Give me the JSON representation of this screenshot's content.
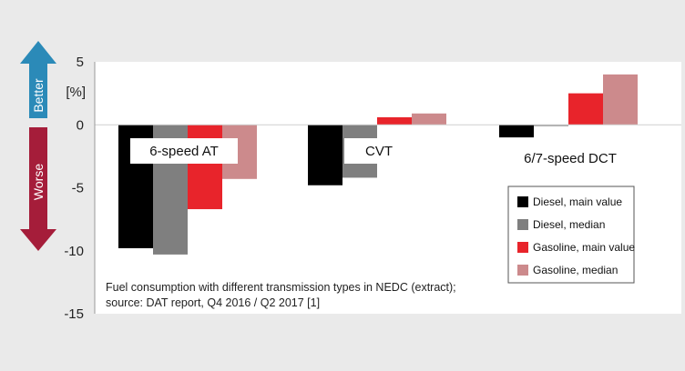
{
  "chart_data": {
    "type": "bar",
    "categories": [
      "6-speed AT",
      "CVT",
      "6/7-speed DCT"
    ],
    "series": [
      {
        "name": "Diesel, main value",
        "color": "#000000",
        "values": [
          -9.8,
          -4.8,
          -1.0
        ]
      },
      {
        "name": "Diesel, median",
        "color": "#7f7f7f",
        "values": [
          -10.3,
          -4.2,
          -0.1
        ]
      },
      {
        "name": "Gasoline, main value",
        "color": "#e8242b",
        "values": [
          -6.7,
          0.6,
          2.5
        ]
      },
      {
        "name": "Gasoline, median",
        "color": "#cc8a8c",
        "values": [
          -4.3,
          0.9,
          4.0
        ]
      }
    ],
    "ylim": [
      -15,
      5
    ],
    "yticks": [
      5,
      0,
      -5,
      -10,
      -15
    ],
    "ylabel": "[%]",
    "better_label": "Better",
    "worse_label": "Worse",
    "caption_lines": [
      "Fuel consumption with different transmission types in NEDC (extract);",
      "source: DAT report, Q4 2016 / Q2 2017 [1]"
    ],
    "legend_position": "bottom-right",
    "grid": false
  },
  "colors": {
    "better_arrow": "#2b8ab8",
    "worse_arrow": "#a51d3a"
  }
}
